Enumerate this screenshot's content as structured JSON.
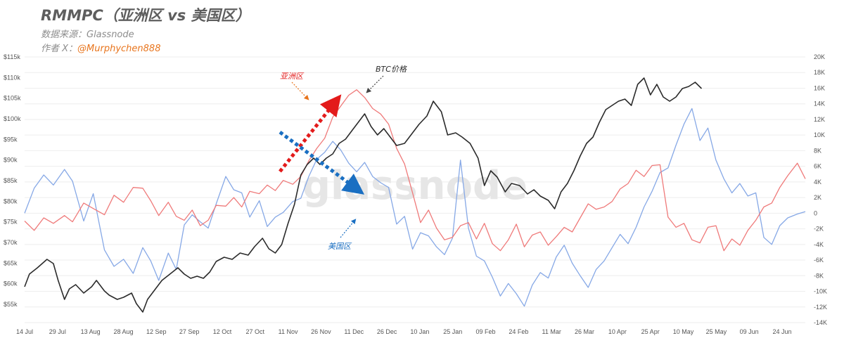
{
  "header": {
    "title": "RMMPC（亚洲区 vs 美国区）",
    "source": "数据来源：Glassnode",
    "author_prefix": "作者 X：",
    "author_handle": "@Murphychen888"
  },
  "watermark": "glassnode",
  "colors": {
    "btc": "#2b2b2b",
    "asia": "#ef7a7a",
    "us": "#86a8e6",
    "asia_arrow": "#e31b1b",
    "us_arrow": "#1a6fc2",
    "asia_label": "#e31b1b",
    "us_label": "#1a6fc2"
  },
  "chart_data": {
    "type": "line",
    "x_ticks": [
      "14 Jul",
      "29 Jul",
      "13 Aug",
      "28 Aug",
      "12 Sep",
      "27 Sep",
      "12 Oct",
      "27 Oct",
      "11 Nov",
      "26 Nov",
      "11 Dec",
      "26 Dec",
      "10 Jan",
      "25 Jan",
      "09 Feb",
      "24 Feb",
      "11 Mar",
      "26 Mar",
      "10 Apr",
      "25 Apr",
      "10 May",
      "25 May",
      "09 Jun",
      "24 Jun"
    ],
    "y_left_ticks": [
      "$115k",
      "$110k",
      "$105k",
      "$100k",
      "$95k",
      "$90k",
      "$85k",
      "$80k",
      "$75k",
      "$70k",
      "$65k",
      "$60k",
      "$55k"
    ],
    "y_right_ticks": [
      "20K",
      "18K",
      "16K",
      "14K",
      "12K",
      "10K",
      "8K",
      "6K",
      "4K",
      "2K",
      "0",
      "-2K",
      "-4K",
      "-6K",
      "-8K",
      "-10K",
      "-12K",
      "-14K"
    ],
    "y_left_range": [
      52000,
      115000
    ],
    "y_right_range": [
      -14000,
      20000
    ],
    "x_range_days": [
      0,
      356
    ],
    "series": [
      {
        "name": "BTC价格",
        "axis": "left",
        "points": [
          [
            0,
            60500
          ],
          [
            3,
            63500
          ],
          [
            8,
            65000
          ],
          [
            14,
            67000
          ],
          [
            18,
            66000
          ],
          [
            21,
            62000
          ],
          [
            25,
            57500
          ],
          [
            28,
            60000
          ],
          [
            32,
            61000
          ],
          [
            37,
            59000
          ],
          [
            42,
            60500
          ],
          [
            45,
            62000
          ],
          [
            50,
            59500
          ],
          [
            53,
            58500
          ],
          [
            58,
            57500
          ],
          [
            62,
            58000
          ],
          [
            67,
            59000
          ],
          [
            70,
            56500
          ],
          [
            74,
            54500
          ],
          [
            77,
            57500
          ],
          [
            82,
            60000
          ],
          [
            86,
            62000
          ],
          [
            91,
            63500
          ],
          [
            96,
            65000
          ],
          [
            100,
            63500
          ],
          [
            104,
            62500
          ],
          [
            108,
            63000
          ],
          [
            112,
            62500
          ],
          [
            116,
            64000
          ],
          [
            120,
            66500
          ],
          [
            125,
            67500
          ],
          [
            130,
            67000
          ],
          [
            135,
            68500
          ],
          [
            140,
            68000
          ],
          [
            144,
            70000
          ],
          [
            149,
            72000
          ],
          [
            153,
            69500
          ],
          [
            157,
            68500
          ],
          [
            161,
            70500
          ],
          [
            165,
            75500
          ],
          [
            169,
            80000
          ],
          [
            173,
            87000
          ],
          [
            177,
            89500
          ],
          [
            181,
            91000
          ],
          [
            185,
            89500
          ],
          [
            189,
            91000
          ],
          [
            193,
            92000
          ],
          [
            197,
            94500
          ],
          [
            201,
            95500
          ],
          [
            205,
            97500
          ],
          [
            209,
            99500
          ],
          [
            213,
            101500
          ],
          [
            217,
            98500
          ],
          [
            221,
            96500
          ],
          [
            225,
            98000
          ],
          [
            229,
            96000
          ],
          [
            233,
            94000
          ],
          [
            238,
            94500
          ],
          [
            243,
            97000
          ],
          [
            247,
            99000
          ],
          [
            252,
            101000
          ],
          [
            256,
            104500
          ],
          [
            261,
            102000
          ],
          [
            265,
            96500
          ],
          [
            270,
            97000
          ],
          [
            274,
            96000
          ],
          [
            279,
            94500
          ],
          [
            284,
            91000
          ],
          [
            288,
            84500
          ],
          [
            292,
            88000
          ],
          [
            296,
            86500
          ],
          [
            301,
            83000
          ],
          [
            305,
            85000
          ],
          [
            310,
            84500
          ],
          [
            315,
            82500
          ],
          [
            319,
            83500
          ],
          [
            323,
            82000
          ],
          [
            328,
            81000
          ],
          [
            332,
            79000
          ],
          [
            336,
            83000
          ],
          [
            340,
            85000
          ],
          [
            344,
            88000
          ],
          [
            348,
            91500
          ],
          [
            352,
            94500
          ],
          [
            356,
            96000
          ],
          [
            360,
            99500
          ],
          [
            364,
            102500
          ],
          [
            368,
            103500
          ],
          [
            372,
            104500
          ],
          [
            376,
            105000
          ],
          [
            380,
            103500
          ],
          [
            384,
            108500
          ],
          [
            388,
            110000
          ],
          [
            392,
            106000
          ],
          [
            396,
            108500
          ],
          [
            400,
            105500
          ],
          [
            404,
            104500
          ],
          [
            408,
            105500
          ],
          [
            412,
            107500
          ],
          [
            416,
            108000
          ],
          [
            420,
            109000
          ],
          [
            424,
            107500
          ]
        ]
      },
      {
        "name": "亚洲区",
        "axis": "right",
        "points": [
          [
            0,
            -1000
          ],
          [
            6,
            -2200
          ],
          [
            12,
            -600
          ],
          [
            18,
            -1300
          ],
          [
            25,
            -300
          ],
          [
            30,
            -1100
          ],
          [
            37,
            1300
          ],
          [
            43,
            600
          ],
          [
            50,
            -200
          ],
          [
            56,
            2300
          ],
          [
            62,
            1400
          ],
          [
            68,
            3300
          ],
          [
            74,
            3200
          ],
          [
            79,
            1600
          ],
          [
            84,
            -300
          ],
          [
            90,
            1400
          ],
          [
            95,
            -400
          ],
          [
            100,
            -900
          ],
          [
            105,
            400
          ],
          [
            110,
            -1600
          ],
          [
            115,
            -900
          ],
          [
            120,
            1000
          ],
          [
            126,
            900
          ],
          [
            131,
            2000
          ],
          [
            136,
            800
          ],
          [
            141,
            2800
          ],
          [
            147,
            2500
          ],
          [
            152,
            3600
          ],
          [
            157,
            2900
          ],
          [
            162,
            4200
          ],
          [
            168,
            3700
          ],
          [
            173,
            4700
          ],
          [
            178,
            6700
          ],
          [
            183,
            8300
          ],
          [
            188,
            9600
          ],
          [
            193,
            12300
          ],
          [
            198,
            13700
          ],
          [
            203,
            15100
          ],
          [
            208,
            15800
          ],
          [
            213,
            14800
          ],
          [
            218,
            13400
          ],
          [
            223,
            12700
          ],
          [
            228,
            11400
          ],
          [
            233,
            8300
          ],
          [
            238,
            6300
          ],
          [
            243,
            2600
          ],
          [
            248,
            -1200
          ],
          [
            253,
            400
          ],
          [
            258,
            -1900
          ],
          [
            263,
            -3400
          ],
          [
            268,
            -3100
          ],
          [
            273,
            -1600
          ],
          [
            278,
            -1200
          ],
          [
            283,
            -3300
          ],
          [
            288,
            -1300
          ],
          [
            293,
            -3900
          ],
          [
            298,
            -4800
          ],
          [
            303,
            -3400
          ],
          [
            308,
            -1400
          ],
          [
            313,
            -4300
          ],
          [
            318,
            -2800
          ],
          [
            323,
            -2400
          ],
          [
            328,
            -4100
          ],
          [
            333,
            -3000
          ],
          [
            338,
            -1800
          ],
          [
            343,
            -2400
          ],
          [
            348,
            -600
          ],
          [
            353,
            1200
          ],
          [
            358,
            500
          ],
          [
            363,
            800
          ],
          [
            368,
            1500
          ],
          [
            373,
            3100
          ],
          [
            378,
            3800
          ],
          [
            383,
            5500
          ],
          [
            388,
            4700
          ],
          [
            393,
            6100
          ],
          [
            398,
            6200
          ],
          [
            403,
            -500
          ],
          [
            408,
            -1800
          ],
          [
            413,
            -1300
          ],
          [
            418,
            -3400
          ],
          [
            423,
            -3800
          ],
          [
            428,
            -1800
          ],
          [
            433,
            -1600
          ],
          [
            438,
            -4800
          ],
          [
            443,
            -3300
          ],
          [
            448,
            -4100
          ],
          [
            453,
            -2200
          ],
          [
            458,
            -900
          ],
          [
            463,
            800
          ],
          [
            468,
            1300
          ],
          [
            473,
            3300
          ],
          [
            478,
            4800
          ],
          [
            484,
            6400
          ],
          [
            489,
            4400
          ]
        ]
      },
      {
        "name": "美国区",
        "axis": "right",
        "points": [
          [
            0,
            0
          ],
          [
            6,
            3200
          ],
          [
            12,
            4900
          ],
          [
            18,
            3600
          ],
          [
            25,
            5600
          ],
          [
            30,
            4100
          ],
          [
            37,
            -1000
          ],
          [
            43,
            2500
          ],
          [
            50,
            -4700
          ],
          [
            56,
            -6800
          ],
          [
            62,
            -5900
          ],
          [
            68,
            -7700
          ],
          [
            74,
            -4400
          ],
          [
            79,
            -6100
          ],
          [
            84,
            -8600
          ],
          [
            90,
            -5100
          ],
          [
            95,
            -7200
          ],
          [
            100,
            -1500
          ],
          [
            105,
            -200
          ],
          [
            110,
            -1100
          ],
          [
            115,
            -1900
          ],
          [
            120,
            1200
          ],
          [
            126,
            4700
          ],
          [
            131,
            3000
          ],
          [
            136,
            2600
          ],
          [
            141,
            -500
          ],
          [
            147,
            1600
          ],
          [
            152,
            -1700
          ],
          [
            157,
            -500
          ],
          [
            162,
            100
          ],
          [
            168,
            1500
          ],
          [
            173,
            1900
          ],
          [
            178,
            4700
          ],
          [
            183,
            6900
          ],
          [
            188,
            7800
          ],
          [
            193,
            9200
          ],
          [
            198,
            8100
          ],
          [
            203,
            6400
          ],
          [
            208,
            5300
          ],
          [
            213,
            6500
          ],
          [
            218,
            4700
          ],
          [
            223,
            3900
          ],
          [
            228,
            3300
          ],
          [
            233,
            -1400
          ],
          [
            238,
            -400
          ],
          [
            243,
            -4600
          ],
          [
            248,
            -2500
          ],
          [
            253,
            -2900
          ],
          [
            258,
            -4300
          ],
          [
            263,
            -5300
          ],
          [
            268,
            -3200
          ],
          [
            273,
            6800
          ],
          [
            278,
            -1900
          ],
          [
            283,
            -5500
          ],
          [
            288,
            -6100
          ],
          [
            293,
            -8200
          ],
          [
            298,
            -10600
          ],
          [
            303,
            -9000
          ],
          [
            308,
            -10300
          ],
          [
            313,
            -11900
          ],
          [
            318,
            -9200
          ],
          [
            323,
            -7600
          ],
          [
            328,
            -8300
          ],
          [
            333,
            -5600
          ],
          [
            338,
            -4100
          ],
          [
            343,
            -6400
          ],
          [
            348,
            -8000
          ],
          [
            353,
            -9500
          ],
          [
            358,
            -7200
          ],
          [
            363,
            -6100
          ],
          [
            368,
            -4400
          ],
          [
            373,
            -2700
          ],
          [
            378,
            -3900
          ],
          [
            383,
            -1800
          ],
          [
            388,
            800
          ],
          [
            393,
            2800
          ],
          [
            398,
            5200
          ],
          [
            403,
            5800
          ],
          [
            408,
            8700
          ],
          [
            413,
            11400
          ],
          [
            418,
            13400
          ],
          [
            423,
            9300
          ],
          [
            428,
            10900
          ],
          [
            433,
            6800
          ],
          [
            438,
            4400
          ],
          [
            443,
            2600
          ],
          [
            448,
            3800
          ],
          [
            453,
            2200
          ],
          [
            458,
            2600
          ],
          [
            463,
            -3100
          ],
          [
            468,
            -4000
          ],
          [
            473,
            -1600
          ],
          [
            478,
            -600
          ],
          [
            484,
            -100
          ],
          [
            489,
            200
          ]
        ]
      }
    ],
    "annotations": [
      {
        "text": "亚洲区",
        "color_key": "asia_label"
      },
      {
        "text": "BTC价格",
        "color_key": "btc"
      },
      {
        "text": "美国区",
        "color_key": "us_label"
      }
    ]
  }
}
